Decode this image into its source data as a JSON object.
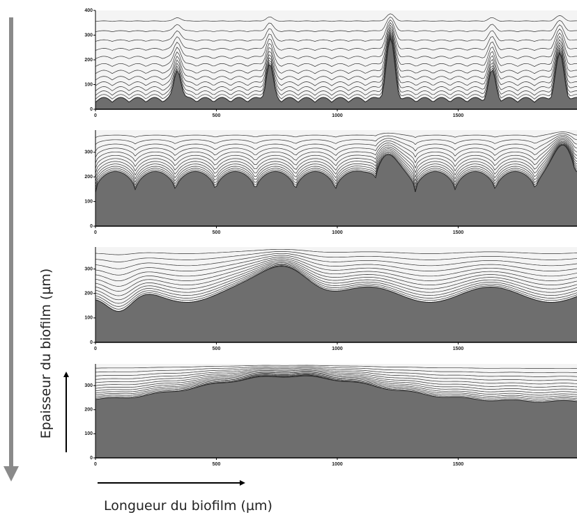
{
  "chart_data": [
    {
      "type": "contour",
      "xlim": [
        0,
        2000
      ],
      "ylim": [
        0,
        400
      ],
      "xticks": [
        0,
        500,
        1000,
        1500
      ],
      "yticks": [
        0,
        100,
        200,
        300,
        400
      ]
    },
    {
      "type": "contour",
      "xlim": [
        0,
        2000
      ],
      "ylim": [
        0,
        390
      ],
      "xticks": [
        0,
        500,
        1000,
        1500
      ],
      "yticks": [
        0,
        100,
        200,
        300
      ]
    },
    {
      "type": "contour",
      "xlim": [
        0,
        2000
      ],
      "ylim": [
        0,
        390
      ],
      "xticks": [
        0,
        500,
        1000,
        1500
      ],
      "yticks": [
        0,
        100,
        200,
        300
      ]
    },
    {
      "type": "contour",
      "xlim": [
        0,
        2000
      ],
      "ylim": [
        0,
        390
      ],
      "xticks": [
        0,
        500,
        1000,
        1500
      ],
      "yticks": [
        0,
        100,
        200,
        300
      ]
    }
  ],
  "y_label": "Epaisseur du biofilm (µm)",
  "x_label": "Longueur du biofilm (µm)"
}
